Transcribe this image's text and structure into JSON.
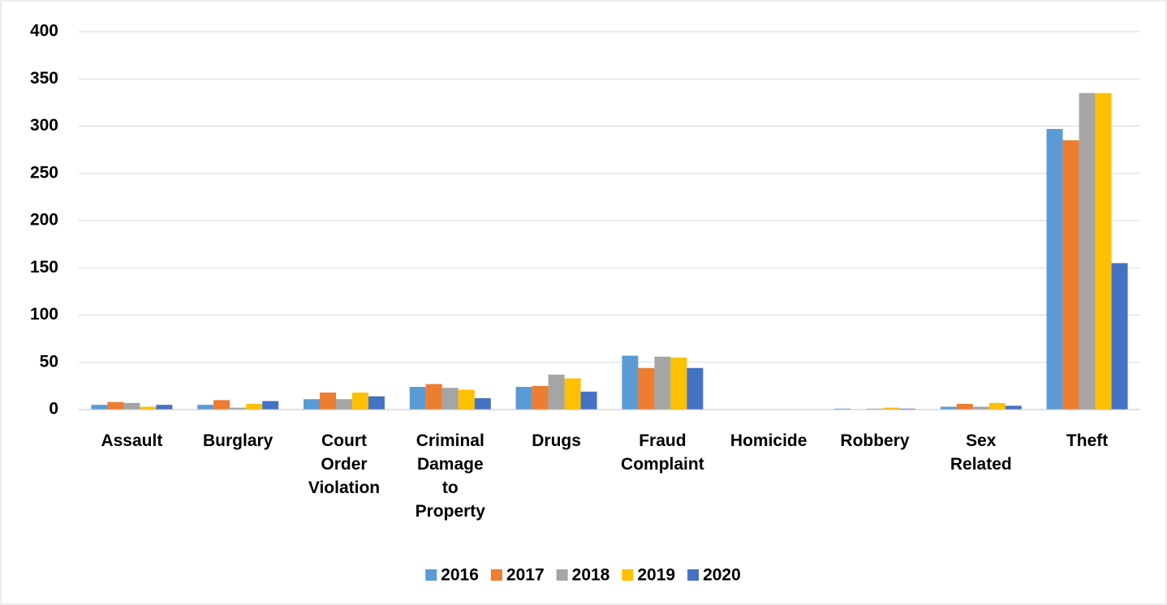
{
  "chart_data": {
    "type": "bar",
    "categories": [
      "Assault",
      "Burglary",
      "Court Order Violation",
      "Criminal Damage to Property",
      "Drugs",
      "Fraud Complaint",
      "Homicide",
      "Robbery",
      "Sex Related",
      "Theft"
    ],
    "series": [
      {
        "name": "2016",
        "color": "#5b9bd5",
        "values": [
          5,
          5,
          11,
          24,
          24,
          57,
          0,
          1,
          3,
          297
        ]
      },
      {
        "name": "2017",
        "color": "#ed7d31",
        "values": [
          8,
          10,
          18,
          27,
          25,
          44,
          0,
          0,
          6,
          285
        ]
      },
      {
        "name": "2018",
        "color": "#a5a5a5",
        "values": [
          7,
          2,
          11,
          23,
          37,
          56,
          0,
          1,
          3,
          335
        ]
      },
      {
        "name": "2019",
        "color": "#ffc000",
        "values": [
          3,
          6,
          18,
          21,
          33,
          55,
          0,
          2,
          7,
          335
        ]
      },
      {
        "name": "2020",
        "color": "#4472c4",
        "values": [
          5,
          9,
          14,
          12,
          19,
          44,
          0,
          1,
          4,
          155
        ]
      }
    ],
    "ylim": [
      0,
      400
    ],
    "yticks": [
      0,
      50,
      100,
      150,
      200,
      250,
      300,
      350,
      400
    ],
    "grid": true,
    "legend": "bottom"
  }
}
